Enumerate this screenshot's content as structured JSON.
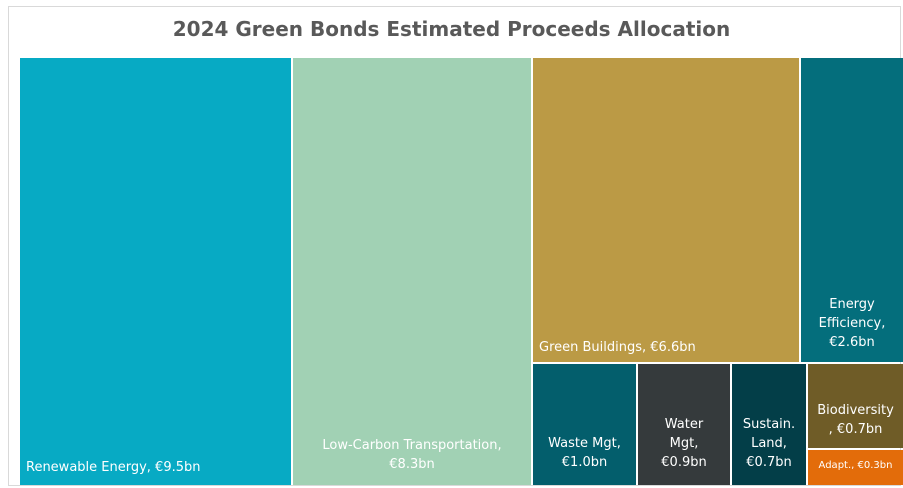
{
  "chart_data": {
    "type": "treemap",
    "title": "2024 Green Bonds Estimated Proceeds Allocation",
    "unit": "€bn",
    "items": [
      {
        "id": "renewable",
        "label_lines": [
          "Renewable Energy, €9.5bn"
        ],
        "value": 9.5,
        "color": "#07aac4"
      },
      {
        "id": "transport",
        "label_lines": [
          "Low-Carbon Transportation,",
          "€8.3bn"
        ],
        "value": 8.3,
        "color": "#a1d1b4"
      },
      {
        "id": "buildings",
        "label_lines": [
          "Green Buildings, €6.6bn"
        ],
        "value": 6.6,
        "color": "#bb9a45"
      },
      {
        "id": "efficiency",
        "label_lines": [
          "Energy",
          "Efficiency,",
          "€2.6bn"
        ],
        "value": 2.6,
        "color": "#046e7c"
      },
      {
        "id": "waste",
        "label_lines": [
          "Waste Mgt,",
          "€1.0bn"
        ],
        "value": 1.0,
        "color": "#035e6c"
      },
      {
        "id": "water",
        "label_lines": [
          "Water",
          "Mgt,",
          "€0.9bn"
        ],
        "value": 0.9,
        "color": "#353a3c"
      },
      {
        "id": "land",
        "label_lines": [
          "Sustain.",
          "Land,",
          "€0.7bn"
        ],
        "value": 0.7,
        "color": "#033e48"
      },
      {
        "id": "biodiversity",
        "label_lines": [
          "Biodiversity",
          ", €0.7bn"
        ],
        "value": 0.7,
        "color": "#6f5c27"
      },
      {
        "id": "adapt",
        "label_lines": [
          "Adapt., €0.3bn"
        ],
        "value": 0.3,
        "color": "#e36c0a"
      }
    ]
  }
}
